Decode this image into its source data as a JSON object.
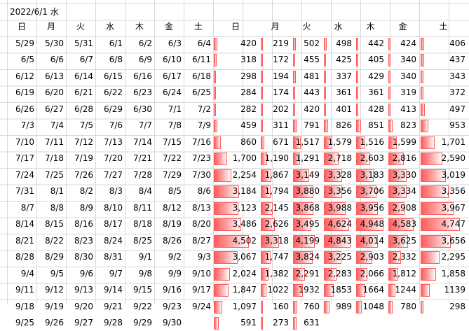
{
  "sheet": {
    "title": "2022/6/1 水",
    "weekday_headers": [
      "日",
      "月",
      "火",
      "水",
      "木",
      "金",
      "土"
    ],
    "calendar_rows": [
      [
        "5/29",
        "5/30",
        "5/31",
        "6/1",
        "6/2",
        "6/3",
        "6/4"
      ],
      [
        "6/5",
        "6/6",
        "6/7",
        "6/8",
        "6/9",
        "6/10",
        "6/11"
      ],
      [
        "6/12",
        "6/13",
        "6/14",
        "6/15",
        "6/16",
        "6/17",
        "6/18"
      ],
      [
        "6/19",
        "6/20",
        "6/21",
        "6/22",
        "6/23",
        "6/24",
        "6/25"
      ],
      [
        "6/26",
        "6/27",
        "6/28",
        "6/29",
        "6/30",
        "7/1",
        "7/2"
      ],
      [
        "7/3",
        "7/4",
        "7/5",
        "7/6",
        "7/7",
        "7/8",
        "7/9"
      ],
      [
        "7/10",
        "7/11",
        "7/12",
        "7/13",
        "7/14",
        "7/15",
        "7/16"
      ],
      [
        "7/17",
        "7/18",
        "7/19",
        "7/20",
        "7/21",
        "7/22",
        "7/23"
      ],
      [
        "7/24",
        "7/25",
        "7/26",
        "7/27",
        "7/28",
        "7/29",
        "7/30"
      ],
      [
        "7/31",
        "8/1",
        "8/2",
        "8/3",
        "8/4",
        "8/5",
        "8/6"
      ],
      [
        "8/7",
        "8/8",
        "8/9",
        "8/10",
        "8/11",
        "8/12",
        "8/13"
      ],
      [
        "8/14",
        "8/15",
        "8/16",
        "8/17",
        "8/18",
        "8/19",
        "8/20"
      ],
      [
        "8/21",
        "8/22",
        "8/23",
        "8/24",
        "8/25",
        "8/26",
        "8/27"
      ],
      [
        "8/28",
        "8/29",
        "8/30",
        "8/31",
        "9/1",
        "9/2",
        "9/3"
      ],
      [
        "9/4",
        "9/5",
        "9/6",
        "9/7",
        "9/8",
        "9/9",
        "9/10"
      ],
      [
        "9/11",
        "9/12",
        "9/13",
        "9/14",
        "9/15",
        "9/16",
        "9/17"
      ],
      [
        "9/18",
        "9/19",
        "9/20",
        "9/21",
        "9/22",
        "9/23",
        "9/24"
      ],
      [
        "9/25",
        "9/26",
        "9/27",
        "9/28",
        "9/29",
        "9/30",
        ""
      ]
    ],
    "value_rows": [
      [
        420,
        219,
        502,
        498,
        442,
        424,
        406
      ],
      [
        318,
        172,
        455,
        425,
        405,
        340,
        437
      ],
      [
        298,
        194,
        481,
        337,
        429,
        340,
        343
      ],
      [
        284,
        174,
        443,
        361,
        361,
        319,
        372
      ],
      [
        282,
        202,
        420,
        401,
        428,
        413,
        497
      ],
      [
        459,
        311,
        791,
        826,
        851,
        823,
        953
      ],
      [
        860,
        671,
        1517,
        1579,
        1516,
        1599,
        1701
      ],
      [
        1700,
        1190,
        1291,
        2718,
        2603,
        2816,
        2590
      ],
      [
        2254,
        1867,
        3149,
        3328,
        3183,
        3330,
        3019
      ],
      [
        3184,
        1794,
        3880,
        3356,
        3706,
        3334,
        3356
      ],
      [
        3123,
        2145,
        3868,
        3988,
        3956,
        2908,
        3967
      ],
      [
        3486,
        2626,
        3495,
        4624,
        4948,
        4583,
        4747
      ],
      [
        4502,
        3318,
        4199,
        4843,
        4014,
        3625,
        3656
      ],
      [
        3067,
        1747,
        3824,
        3225,
        2903,
        2332,
        2295
      ],
      [
        2024,
        1382,
        2291,
        2283,
        2066,
        1812,
        1858
      ],
      [
        1847,
        1022,
        1932,
        1853,
        1664,
        1244,
        1139
      ],
      [
        1097,
        160,
        760,
        989,
        1048,
        780,
        298
      ],
      [
        591,
        273,
        631,
        null,
        null,
        null,
        null
      ]
    ],
    "value_display": [
      [
        "420",
        "219",
        "502",
        "498",
        "442",
        "424",
        "406"
      ],
      [
        "318",
        "172",
        "455",
        "425",
        "405",
        "340",
        "437"
      ],
      [
        "298",
        "194",
        "481",
        "337",
        "429",
        "340",
        "343"
      ],
      [
        "284",
        "174",
        "443",
        "361",
        "361",
        "319",
        "372"
      ],
      [
        "282",
        "202",
        "420",
        "401",
        "428",
        "413",
        "497"
      ],
      [
        "459",
        "311",
        "791",
        "826",
        "851",
        "823",
        "953"
      ],
      [
        "860",
        "671",
        "1,517",
        "1,579",
        "1,516",
        "1,599",
        "1,701"
      ],
      [
        "1,700",
        "1,190",
        "1,291",
        "2,718",
        "2,603",
        "2,816",
        "2,590"
      ],
      [
        "2,254",
        "1,867",
        "3,149",
        "3,328",
        "3,183",
        "3,330",
        "3,019"
      ],
      [
        "3,184",
        "1,794",
        "3,880",
        "3,356",
        "3,706",
        "3,334",
        "3,356"
      ],
      [
        "3,123",
        "2,145",
        "3,868",
        "3,988",
        "3,956",
        "2,908",
        "3,967"
      ],
      [
        "3,486",
        "2,626",
        "3,495",
        "4,624",
        "4,948",
        "4,583",
        "4,747"
      ],
      [
        "4,502",
        "3,318",
        "4,199",
        "4,843",
        "4,014",
        "3,625",
        "3,656"
      ],
      [
        "3,067",
        "1,747",
        "3,824",
        "3,225",
        "2,903",
        "2,332",
        "2,295"
      ],
      [
        "2,024",
        "1,382",
        "2,291",
        "2,283",
        "2,066",
        "1,812",
        "1,858"
      ],
      [
        "1,847",
        "1022",
        "1932",
        "1853",
        "1664",
        "1244",
        "1139"
      ],
      [
        "1,097",
        "160",
        "760",
        "989",
        "1048",
        "780",
        "298"
      ],
      [
        "591",
        "273",
        "631",
        "",
        "",
        "",
        ""
      ]
    ],
    "bar_max_value": 5000,
    "colors": {
      "bar": "#ff5b5b",
      "grid": "#d9d9d9"
    }
  }
}
